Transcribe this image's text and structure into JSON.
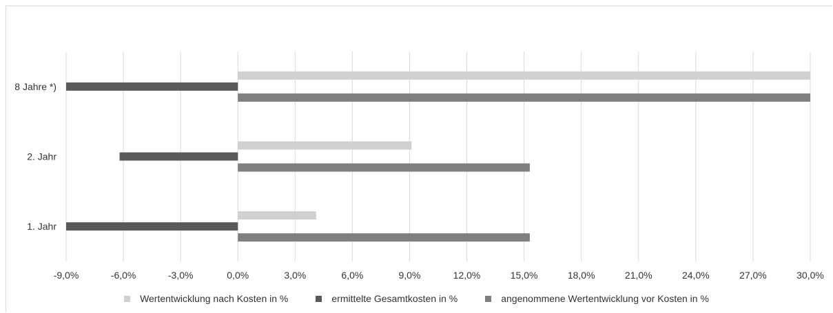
{
  "chart_data": {
    "type": "bar",
    "orientation": "horizontal",
    "categories": [
      "8 Jahre *)",
      "2. Jahr",
      "1. Jahr"
    ],
    "series": [
      {
        "name": "Wertentwicklung nach Kosten in %",
        "values": [
          30.0,
          9.1,
          4.1
        ],
        "color": "#d0d0d0"
      },
      {
        "name": "ermittelte Gesamtkosten in %",
        "values": [
          -9.0,
          -6.2,
          -9.0
        ],
        "color": "#595959"
      },
      {
        "name": "angenommene Wertentwicklung vor Kosten in %",
        "values": [
          30.0,
          15.3,
          15.3
        ],
        "color": "#7f7f7f"
      }
    ],
    "xlim": [
      -9,
      30
    ],
    "xticks": [
      "-9,0%",
      "-6,0%",
      "-3,0%",
      "0,0%",
      "3,0%",
      "6,0%",
      "9,0%",
      "12,0%",
      "15,0%",
      "18,0%",
      "21,0%",
      "24,0%",
      "27,0%",
      "30,0%"
    ],
    "xtick_values": [
      -9,
      -6,
      -3,
      0,
      3,
      6,
      9,
      12,
      15,
      18,
      21,
      24,
      27,
      30
    ],
    "grid": true,
    "legend_position": "bottom"
  }
}
